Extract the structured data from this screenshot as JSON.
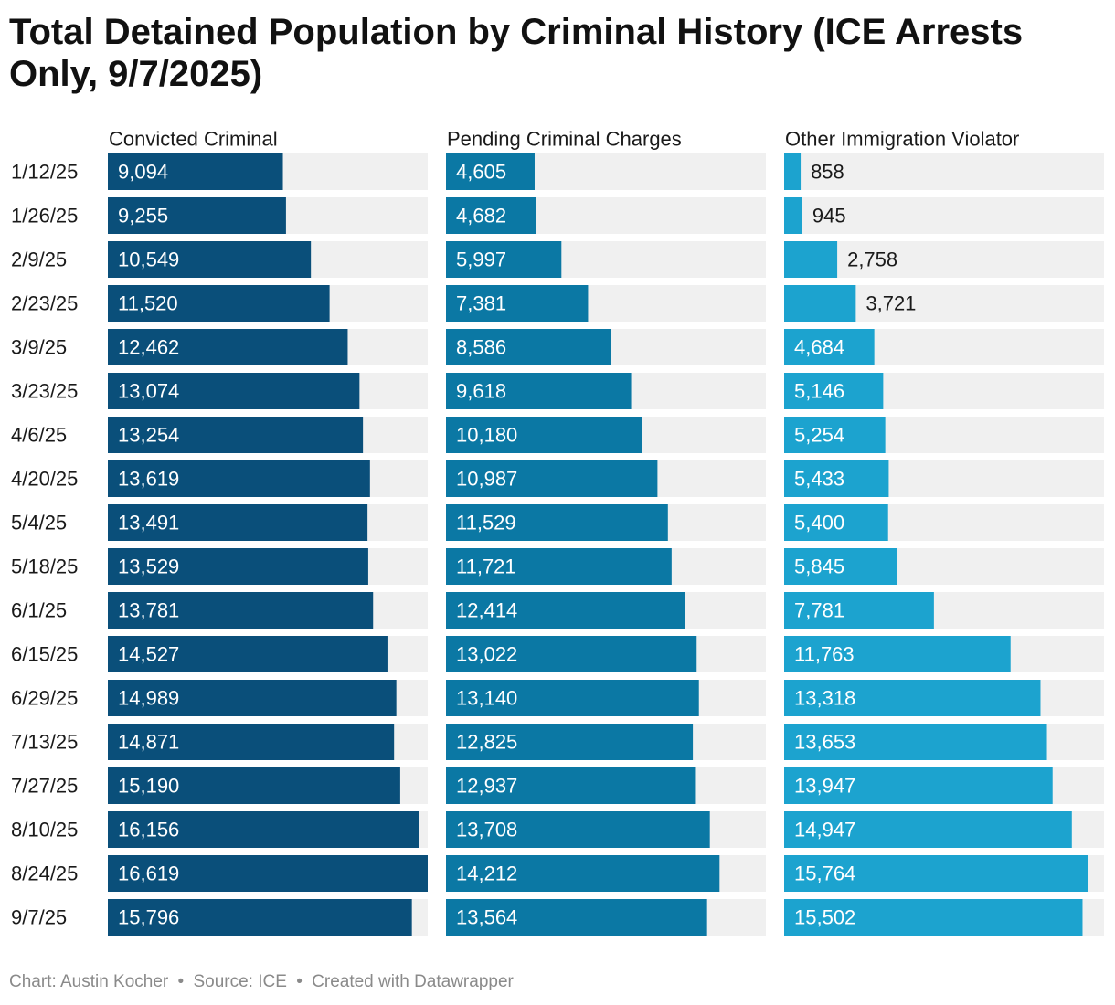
{
  "title": "Total Detained Population by Criminal History (ICE Arrests Only, 9/7/2025)",
  "footer": {
    "chart_credit": "Chart: Austin Kocher",
    "separator": "•",
    "source": "Source: ICE",
    "tool": "Created with Datawrapper"
  },
  "chart_data": {
    "type": "bar",
    "orientation": "horizontal",
    "layout": "small-multiples",
    "categories": [
      "1/12/25",
      "1/26/25",
      "2/9/25",
      "2/23/25",
      "3/9/25",
      "3/23/25",
      "4/6/25",
      "4/20/25",
      "5/4/25",
      "5/18/25",
      "6/1/25",
      "6/15/25",
      "6/29/25",
      "7/13/25",
      "7/27/25",
      "8/10/25",
      "8/24/25",
      "9/7/25"
    ],
    "xlim": [
      0,
      16619
    ],
    "series": [
      {
        "name": "Convicted Criminal",
        "color": "#0a4f7a",
        "values": [
          9094,
          9255,
          10549,
          11520,
          12462,
          13074,
          13254,
          13619,
          13491,
          13529,
          13781,
          14527,
          14989,
          14871,
          15190,
          16156,
          16619,
          15796
        ]
      },
      {
        "name": "Pending Criminal Charges",
        "color": "#0b78a4",
        "values": [
          4605,
          4682,
          5997,
          7381,
          8586,
          9618,
          10180,
          10987,
          11529,
          11721,
          12414,
          13022,
          13140,
          12825,
          12937,
          13708,
          14212,
          13564
        ]
      },
      {
        "name": "Other Immigration Violator",
        "color": "#1ca3cf",
        "values": [
          858,
          945,
          2758,
          3721,
          4684,
          5146,
          5254,
          5433,
          5400,
          5845,
          7781,
          11763,
          13318,
          13653,
          13947,
          14947,
          15764,
          15502
        ]
      }
    ],
    "track_color": "#f0f0f0",
    "label_inside_color": "#ffffff",
    "label_outside_color": "#1a1a1a",
    "grid": false,
    "legend": "none"
  }
}
